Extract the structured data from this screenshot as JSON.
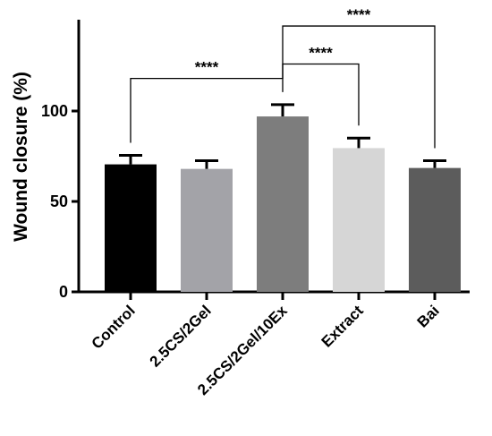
{
  "chart_data": {
    "type": "bar",
    "title": "",
    "xlabel": "",
    "ylabel": "Wound closure (%)",
    "ylim": [
      0,
      150
    ],
    "yticks": [
      "0",
      "50",
      "100"
    ],
    "categories": [
      "Control",
      "2.5CS/2Gel",
      "2.5CS/2Gel/10Ex",
      "Extract",
      "Bai"
    ],
    "values": [
      70.5,
      68,
      97,
      79.5,
      68.5
    ],
    "errors": [
      5,
      4.5,
      6.5,
      5.5,
      4
    ],
    "colors": [
      "#000000",
      "#a3a3a8",
      "#7d7d7d",
      "#d6d6d6",
      "#5c5c5c"
    ],
    "grid": false,
    "legend": "none",
    "significance": [
      {
        "from": 0,
        "to": 2,
        "label": "****",
        "y": 118
      },
      {
        "from": 2,
        "to": 3,
        "label": "****",
        "y": 126
      },
      {
        "from": 2,
        "to": 4,
        "label": "****",
        "y": 147
      }
    ]
  }
}
